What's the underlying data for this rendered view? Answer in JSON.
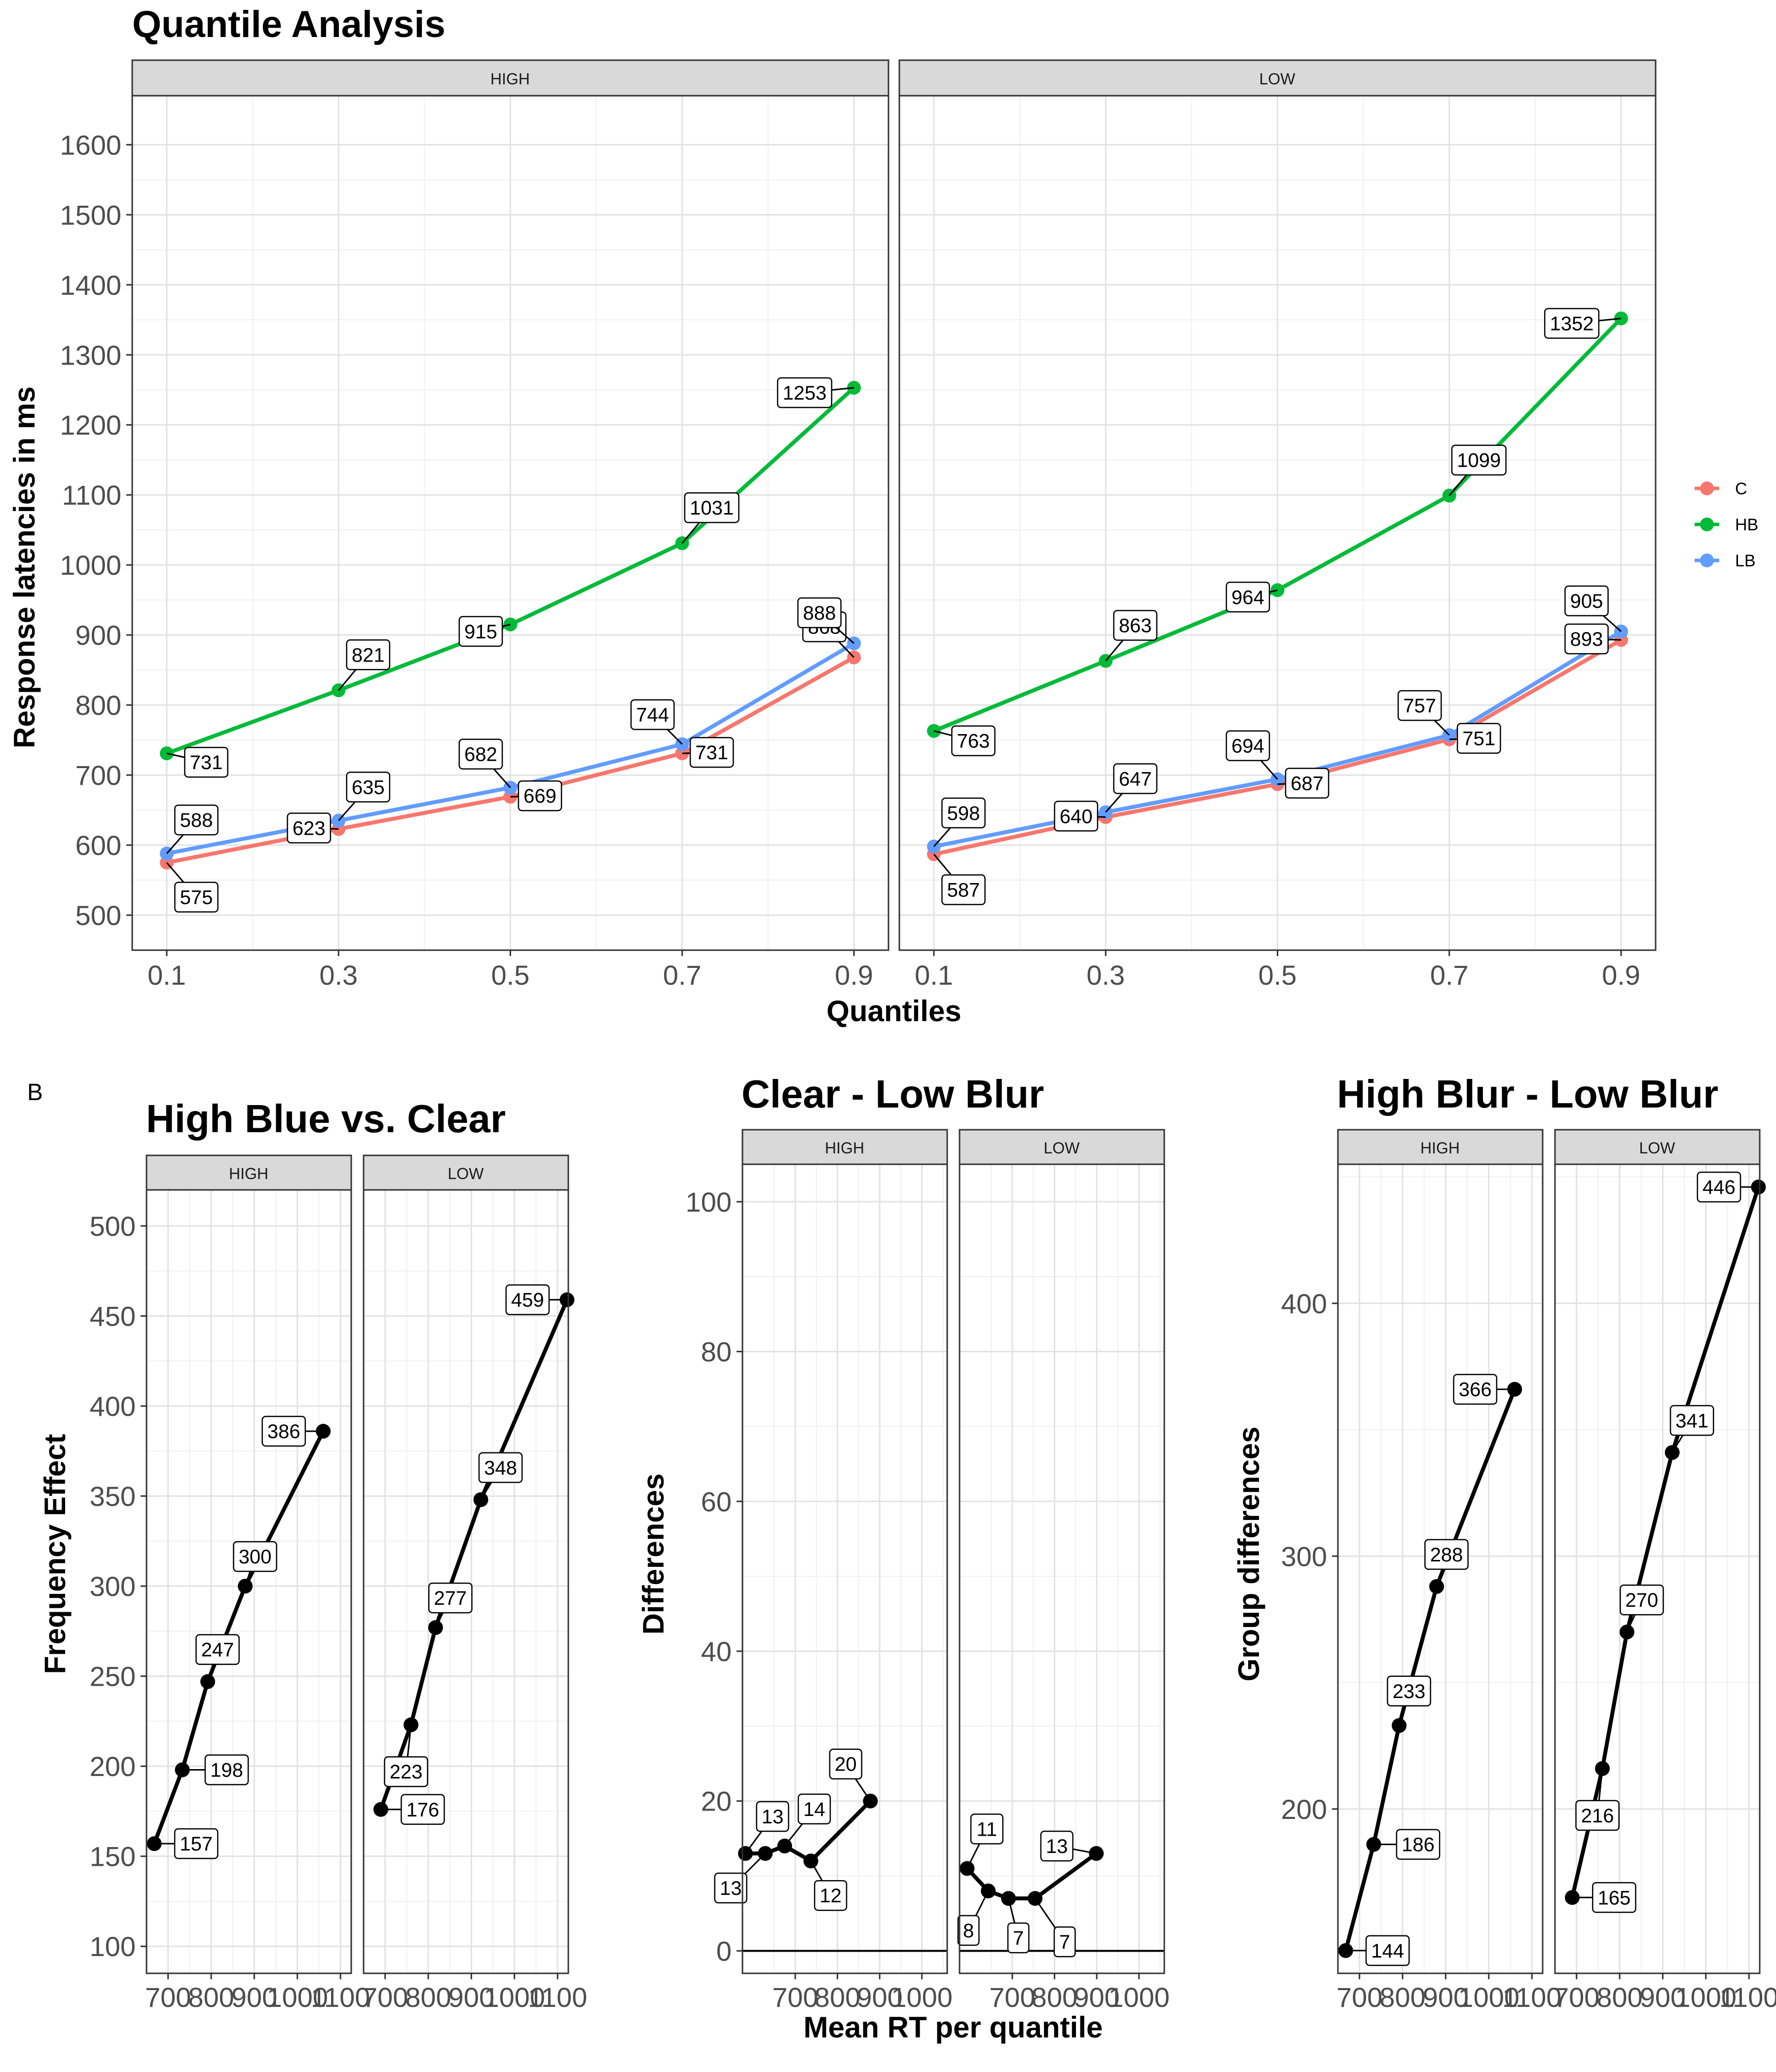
{
  "panel_label": "B",
  "legend": {
    "title": "",
    "placement": "right",
    "items": [
      {
        "name": "C",
        "color": "#F8766D"
      },
      {
        "name": "HB",
        "color": "#00BA38"
      },
      {
        "name": "LB",
        "color": "#619CFF"
      }
    ]
  },
  "chart_data": [
    {
      "type": "line",
      "title": "Quantile Analysis",
      "xlabel": "Quantiles",
      "ylabel": "Response latencies in ms",
      "x": [
        0.1,
        0.3,
        0.5,
        0.7,
        0.9
      ],
      "xticks": [
        "0.1",
        "0.3",
        "0.5",
        "0.7",
        "0.9"
      ],
      "ylim": [
        450,
        1670
      ],
      "yticks": [
        500,
        600,
        700,
        800,
        900,
        1000,
        1100,
        1200,
        1300,
        1400,
        1500,
        1600
      ],
      "grid": true,
      "facets": [
        {
          "label": "HIGH",
          "series": [
            {
              "name": "C",
              "values": [
                575,
                623,
                669,
                731,
                868
              ]
            },
            {
              "name": "HB",
              "values": [
                731,
                821,
                915,
                1031,
                1253
              ]
            },
            {
              "name": "LB",
              "values": [
                588,
                635,
                682,
                744,
                888
              ]
            }
          ]
        },
        {
          "label": "LOW",
          "series": [
            {
              "name": "C",
              "values": [
                587,
                640,
                687,
                751,
                893
              ]
            },
            {
              "name": "HB",
              "values": [
                763,
                863,
                964,
                1099,
                1352
              ]
            },
            {
              "name": "LB",
              "values": [
                598,
                647,
                694,
                757,
                905
              ]
            }
          ]
        }
      ]
    },
    {
      "type": "line",
      "title": "High Blue vs. Clear",
      "xlabel": "",
      "ylabel": "Frequency Effect",
      "xticks": [
        700,
        800,
        900,
        1000,
        1100
      ],
      "xlim": [
        650,
        1125
      ],
      "ylim": [
        85,
        520
      ],
      "yticks": [
        100,
        150,
        200,
        250,
        300,
        350,
        400,
        450,
        500
      ],
      "grid": true,
      "facets": [
        {
          "label": "HIGH",
          "points": [
            {
              "x": 668,
              "y": 157
            },
            {
              "x": 733,
              "y": 198
            },
            {
              "x": 792,
              "y": 247
            },
            {
              "x": 879,
              "y": 300
            },
            {
              "x": 1060,
              "y": 386
            }
          ]
        },
        {
          "label": "LOW",
          "points": [
            {
              "x": 690,
              "y": 176
            },
            {
              "x": 760,
              "y": 223
            },
            {
              "x": 817,
              "y": 277
            },
            {
              "x": 922,
              "y": 348
            },
            {
              "x": 1122,
              "y": 459
            }
          ]
        }
      ]
    },
    {
      "type": "line",
      "title": "Clear - Low Blur",
      "xlabel": "Mean RT per quantile",
      "ylabel": "Differences",
      "xticks": [
        700,
        800,
        900,
        1000
      ],
      "xlim": [
        575,
        1060
      ],
      "ylim": [
        -3,
        105
      ],
      "yticks": [
        0,
        20,
        40,
        60,
        80,
        100
      ],
      "hline": 0,
      "grid": true,
      "facets": [
        {
          "label": "HIGH",
          "points": [
            {
              "x": 582,
              "y": 13
            },
            {
              "x": 629,
              "y": 13
            },
            {
              "x": 675,
              "y": 14
            },
            {
              "x": 737,
              "y": 12
            },
            {
              "x": 878,
              "y": 20
            }
          ]
        },
        {
          "label": "LOW",
          "points": [
            {
              "x": 593,
              "y": 11
            },
            {
              "x": 643,
              "y": 8
            },
            {
              "x": 691,
              "y": 7
            },
            {
              "x": 754,
              "y": 7
            },
            {
              "x": 899,
              "y": 13
            }
          ]
        }
      ]
    },
    {
      "type": "line",
      "title": "High Blur - Low Blur",
      "xlabel": "",
      "ylabel": "Group differences",
      "xticks": [
        700,
        800,
        900,
        1000,
        1100
      ],
      "xlim": [
        650,
        1125
      ],
      "ylim": [
        135,
        455
      ],
      "yticks": [
        200,
        300,
        400
      ],
      "grid": true,
      "facets": [
        {
          "label": "HIGH",
          "points": [
            {
              "x": 668,
              "y": 144
            },
            {
              "x": 733,
              "y": 186
            },
            {
              "x": 792,
              "y": 233
            },
            {
              "x": 879,
              "y": 288
            },
            {
              "x": 1060,
              "y": 366
            }
          ]
        },
        {
          "label": "LOW",
          "points": [
            {
              "x": 690,
              "y": 165
            },
            {
              "x": 760,
              "y": 216
            },
            {
              "x": 817,
              "y": 270
            },
            {
              "x": 922,
              "y": 341
            },
            {
              "x": 1122,
              "y": 446
            }
          ]
        }
      ]
    }
  ]
}
